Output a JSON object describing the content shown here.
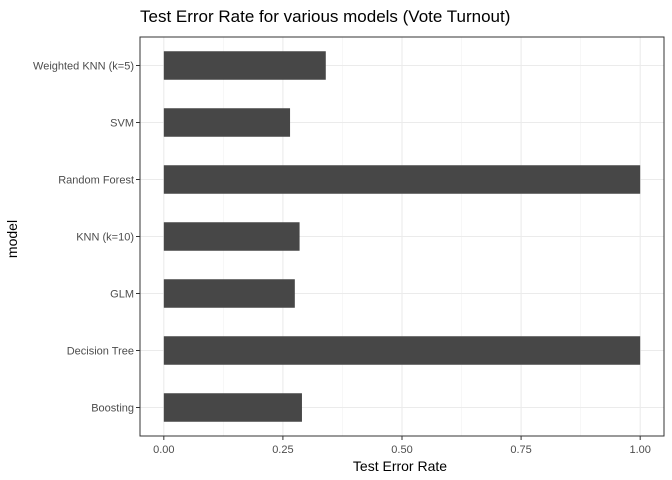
{
  "chart_data": {
    "type": "bar",
    "orientation": "horizontal",
    "title": "Test Error Rate for various models (Vote Turnout)",
    "xlabel": "Test Error Rate",
    "ylabel": "model",
    "categories": [
      "Weighted KNN (k=5)",
      "SVM",
      "Random Forest",
      "KNN (k=10)",
      "GLM",
      "Decision Tree",
      "Boosting"
    ],
    "values": [
      0.34,
      0.265,
      1.0,
      0.285,
      0.275,
      1.0,
      0.29
    ],
    "xlim": [
      -0.05,
      1.05
    ],
    "xticks": [
      0,
      0.25,
      0.5,
      0.75,
      1.0
    ],
    "xtick_labels": [
      "0.00",
      "0.25",
      "0.50",
      "0.75",
      "1.00"
    ],
    "bar_color": "#474747",
    "grid": true,
    "theme": "bw"
  }
}
